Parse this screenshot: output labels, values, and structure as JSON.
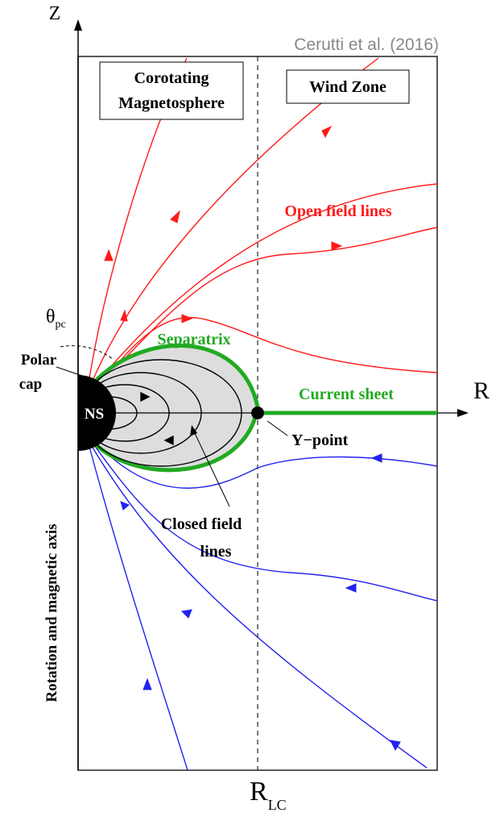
{
  "attribution": "Cerutti et al. (2016)",
  "axes": {
    "z": "Z",
    "r": "R",
    "light_cylinder": {
      "main": "R",
      "sub": "LC"
    },
    "vertical_axis": "Rotation and magnetic axis"
  },
  "zones": {
    "corotating": [
      "Corotating",
      "Magnetosphere"
    ],
    "wind": "Wind Zone"
  },
  "labels": {
    "open_field_lines": "Open field lines",
    "theta_pc": {
      "main": "θ",
      "sub": "pc"
    },
    "polar_cap": [
      "Polar",
      "cap"
    ],
    "star": "NS",
    "separatrix": "Separatrix",
    "current_sheet": "Current sheet",
    "y_point": "Y−point",
    "closed_field_lines": [
      "Closed field",
      "lines"
    ]
  }
}
